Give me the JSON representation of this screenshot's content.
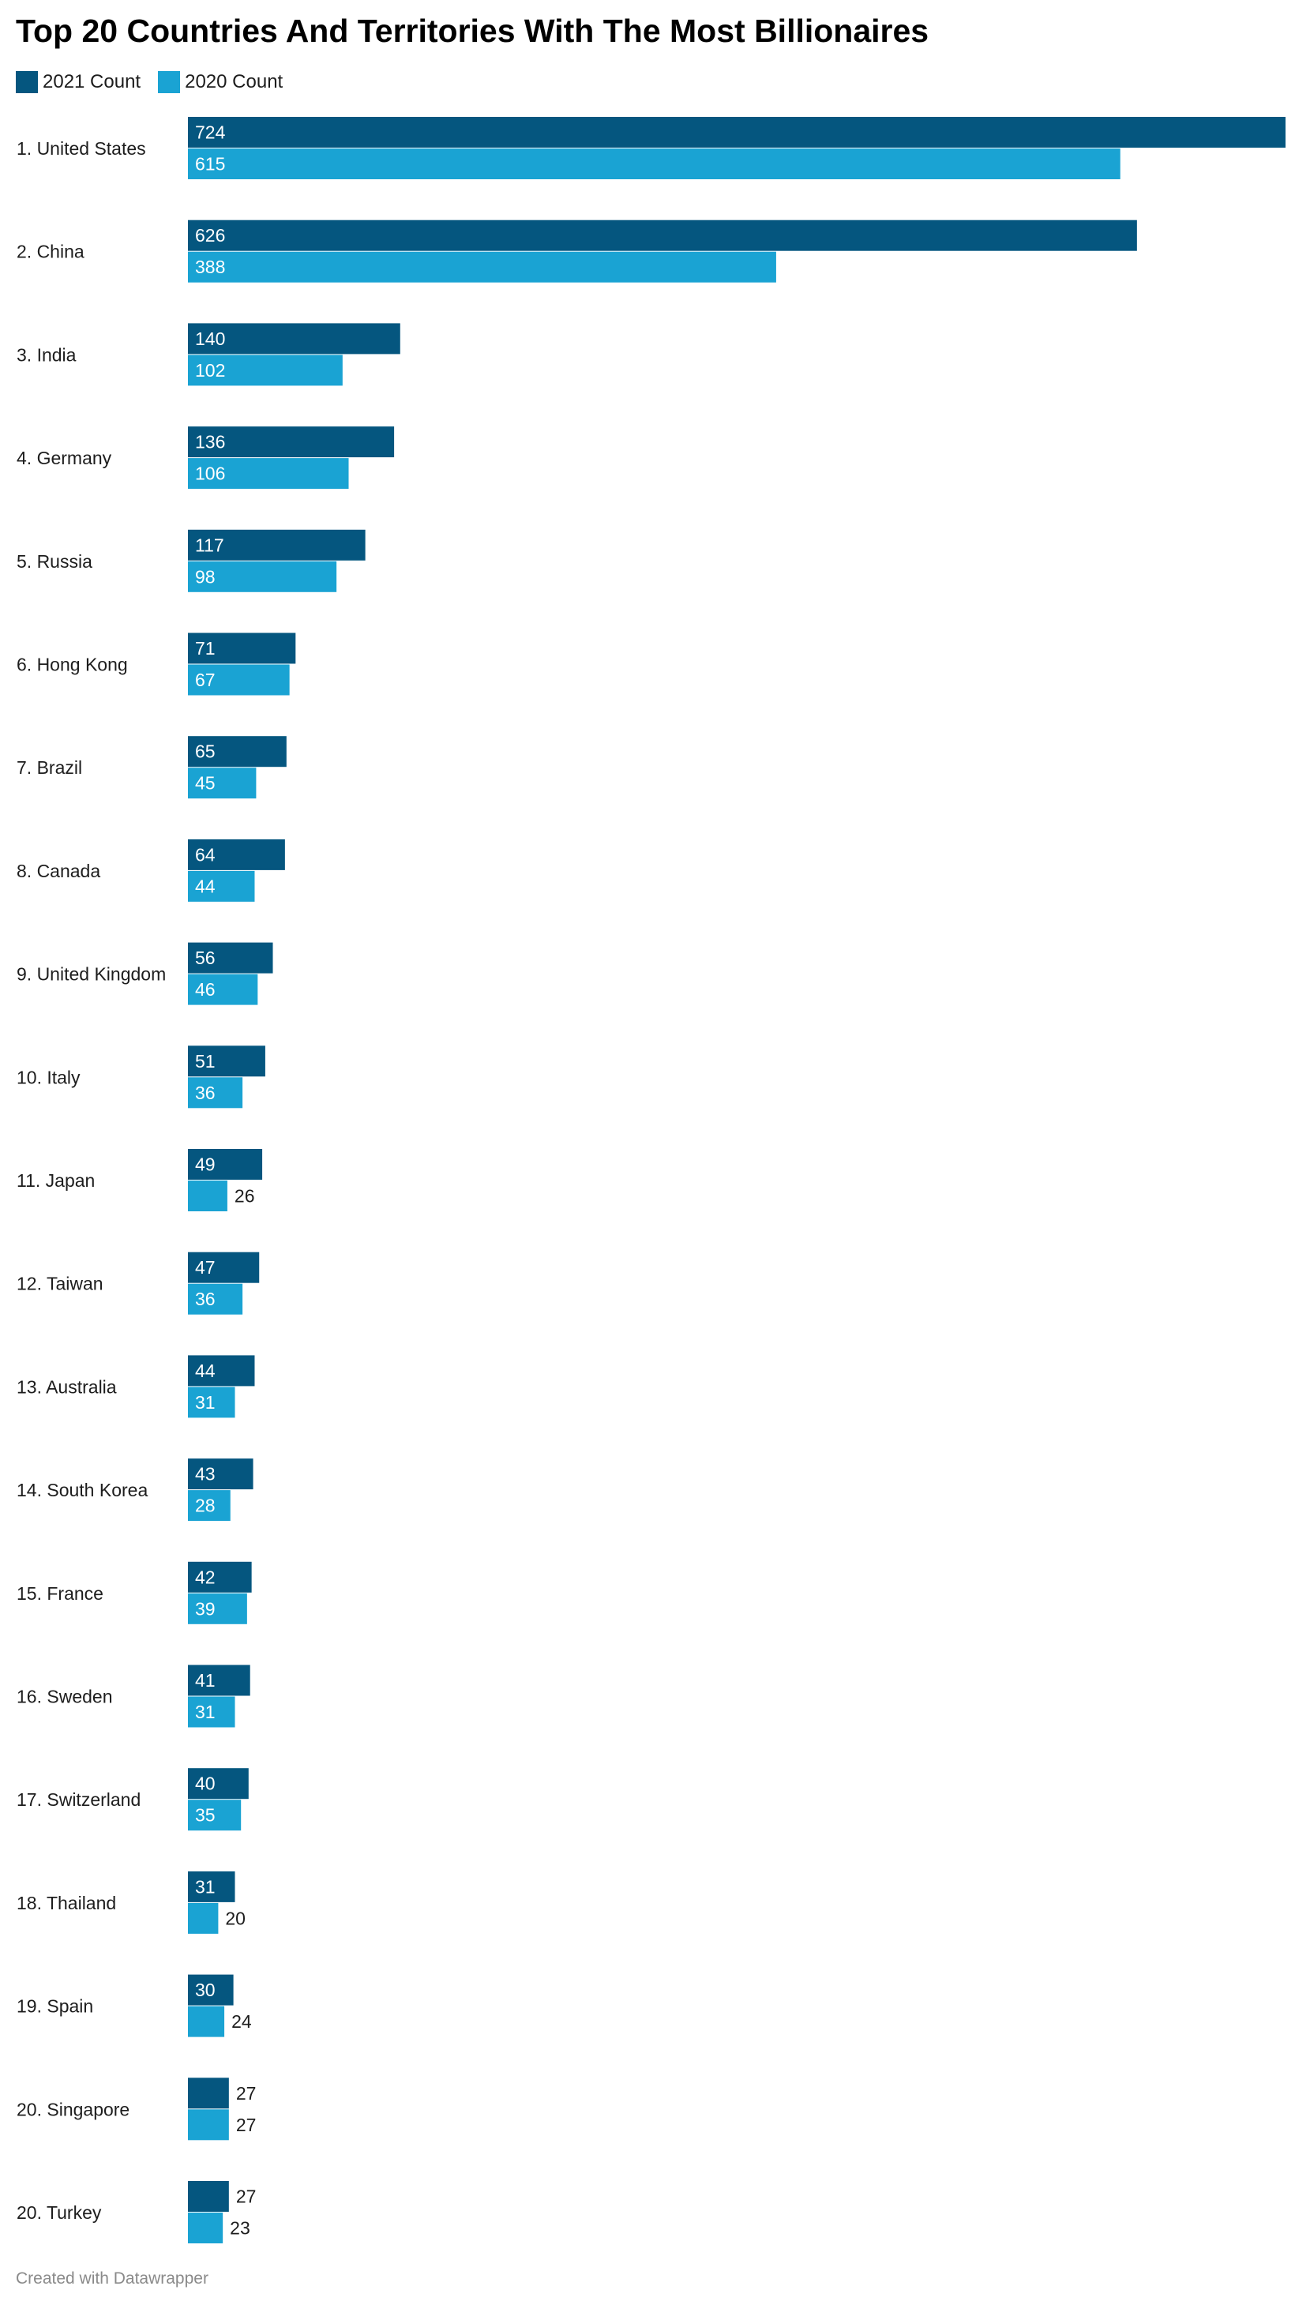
{
  "title": "Top 20 Countries And Territories With The Most Billionaires",
  "footer": "Created with Datawrapper",
  "colors": {
    "series_2021": "#05567f",
    "series_2020": "#1aa3d3",
    "label_text": "#1d1d1d",
    "value_text_inside": "#ffffff",
    "value_text_outside": "#1d1d1d"
  },
  "chart_data": {
    "type": "bar",
    "orientation": "horizontal",
    "legend_position": "top-left",
    "grid": false,
    "categories": [
      "1. United States",
      "2. China",
      "3. India",
      "4. Germany",
      "5. Russia",
      "6. Hong Kong",
      "7. Brazil",
      "8. Canada",
      "9. United Kingdom",
      "10. Italy",
      "11. Japan",
      "12. Taiwan",
      "13. Australia",
      "14. South Korea",
      "15. France",
      "16. Sweden",
      "17. Switzerland",
      "18. Thailand",
      "19. Spain",
      "20. Singapore",
      "20. Turkey"
    ],
    "series": [
      {
        "name": "2021 Count",
        "values": [
          724,
          626,
          140,
          136,
          117,
          71,
          65,
          64,
          56,
          51,
          49,
          47,
          44,
          43,
          42,
          41,
          40,
          31,
          30,
          27,
          27
        ]
      },
      {
        "name": "2020 Count",
        "values": [
          615,
          388,
          102,
          106,
          98,
          67,
          45,
          44,
          46,
          36,
          26,
          36,
          31,
          28,
          39,
          31,
          35,
          20,
          24,
          27,
          23
        ]
      }
    ],
    "xlim": [
      0,
      724
    ]
  }
}
